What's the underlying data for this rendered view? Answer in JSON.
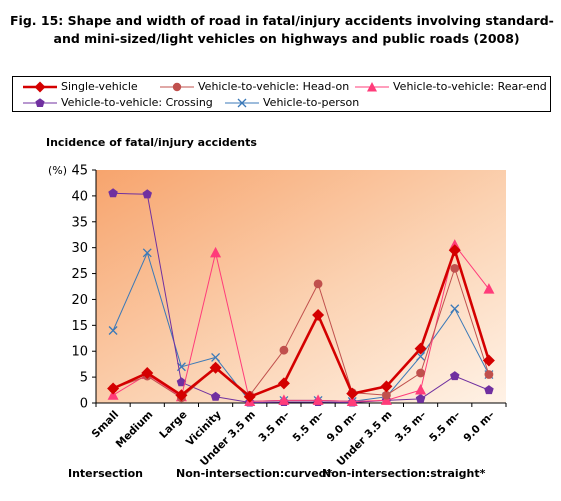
{
  "title_line1": "Fig. 15: Shape and width of road in fatal/injury accidents involving standard-",
  "title_line2": "          and mini-sized/light vehicles on highways and public roads (2008)",
  "chart_data": {
    "type": "line",
    "ylabel": "Incidence of fatal/injury accidents",
    "yunit": "(%)",
    "ylim": [
      0,
      45
    ],
    "yticks": [
      0,
      5,
      10,
      15,
      20,
      25,
      30,
      35,
      40,
      45
    ],
    "categories": [
      "Small",
      "Medium",
      "Large",
      "Vicinity",
      "Under 3.5 m",
      "3.5 m–",
      "5.5 m–",
      "9.0 m–",
      "Under 3.5 m",
      "3.5 m–",
      "5.5 m–",
      "9.0 m–"
    ],
    "groups": [
      {
        "label": "Intersection",
        "start": 0,
        "end": 3
      },
      {
        "label": "Non-intersection:curved*",
        "start": 4,
        "end": 7
      },
      {
        "label": "Non-intersection:straight*",
        "start": 8,
        "end": 11
      }
    ],
    "series": [
      {
        "name": "Single-vehicle",
        "color": "#d40000",
        "marker": "diamond",
        "values": [
          2.8,
          5.8,
          1.5,
          6.8,
          1.2,
          3.8,
          17.0,
          1.8,
          3.2,
          10.5,
          29.5,
          8.2
        ]
      },
      {
        "name": "Vehicle-to-vehicle: Head-on",
        "color": "#c0504d",
        "marker": "circle",
        "values": [
          2.8,
          5.2,
          1.0,
          6.8,
          1.5,
          10.2,
          23.0,
          2.0,
          1.5,
          5.8,
          26.0,
          5.5
        ]
      },
      {
        "name": "Vehicle-to-vehicle: Rear-end",
        "color": "#ff3c7a",
        "marker": "triangle",
        "values": [
          1.5,
          5.5,
          1.2,
          29.0,
          0.3,
          0.5,
          0.5,
          0.3,
          0.5,
          2.5,
          30.5,
          22.0
        ]
      },
      {
        "name": "Vehicle-to-vehicle: Crossing",
        "color": "#7030a0",
        "marker": "pentagon",
        "values": [
          40.5,
          40.3,
          4.0,
          1.2,
          0.1,
          0.2,
          0.2,
          0.1,
          0.5,
          0.8,
          5.2,
          2.5
        ]
      },
      {
        "name": "Vehicle-to-person",
        "color": "#3b79b8",
        "marker": "x",
        "values": [
          14.0,
          29.0,
          7.0,
          8.8,
          0.3,
          0.5,
          0.5,
          0.3,
          1.2,
          9.0,
          18.2,
          5.5
        ]
      }
    ],
    "grid": false,
    "legend": "top"
  }
}
